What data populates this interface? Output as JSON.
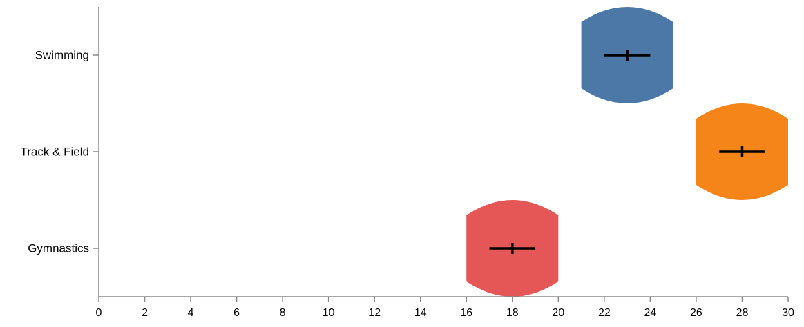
{
  "chart_data": {
    "type": "violin",
    "title": "",
    "xlabel": "",
    "ylabel": "",
    "xlim": [
      0,
      30
    ],
    "x_ticks": [
      "0",
      "2",
      "4",
      "6",
      "8",
      "10",
      "12",
      "14",
      "16",
      "18",
      "20",
      "22",
      "24",
      "26",
      "28",
      "30"
    ],
    "categories": [
      "Swimming",
      "Track & Field",
      "Gymnastics"
    ],
    "series": [
      {
        "category": "Swimming",
        "color": "#4c78a8",
        "min": 21,
        "max": 25,
        "center": 23,
        "whisker_low": 22,
        "whisker_high": 24
      },
      {
        "category": "Track & Field",
        "color": "#f58518",
        "min": 26,
        "max": 30,
        "center": 28,
        "whisker_low": 27,
        "whisker_high": 29
      },
      {
        "category": "Gymnastics",
        "color": "#e45756",
        "min": 16,
        "max": 20,
        "center": 18,
        "whisker_low": 17,
        "whisker_high": 19
      }
    ],
    "grid": false,
    "legend": "none"
  }
}
